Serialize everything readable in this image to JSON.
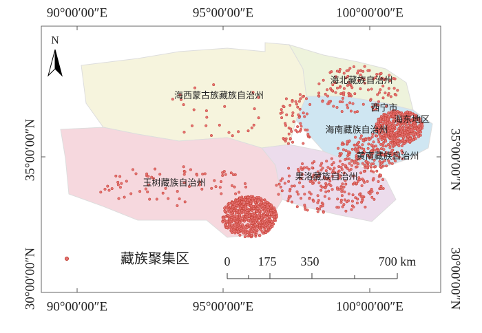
{
  "map": {
    "north": "N",
    "top_labels": [
      "90°00′00″E",
      "95°00′00″E",
      "100°00′00″E"
    ],
    "bottom_labels": [
      "90°00′00″E",
      "95°00′00″E",
      "100°00′00″E"
    ],
    "left_labels": [
      "35°00′00″N",
      "30°00′00″N"
    ],
    "right_labels": [
      "35°00′00″N",
      "30°00′00″N"
    ],
    "regions": [
      "海西蒙古族藏族自治州",
      "海北藏族自治州",
      "西宁市",
      "海东地区",
      "海南藏族自治州",
      "黄南藏族自治州",
      "果洛藏族自治州",
      "玉树藏族自治州"
    ],
    "legend": "藏族聚集区",
    "scale_bar": [
      "0",
      "175",
      "350",
      "700 km"
    ]
  }
}
